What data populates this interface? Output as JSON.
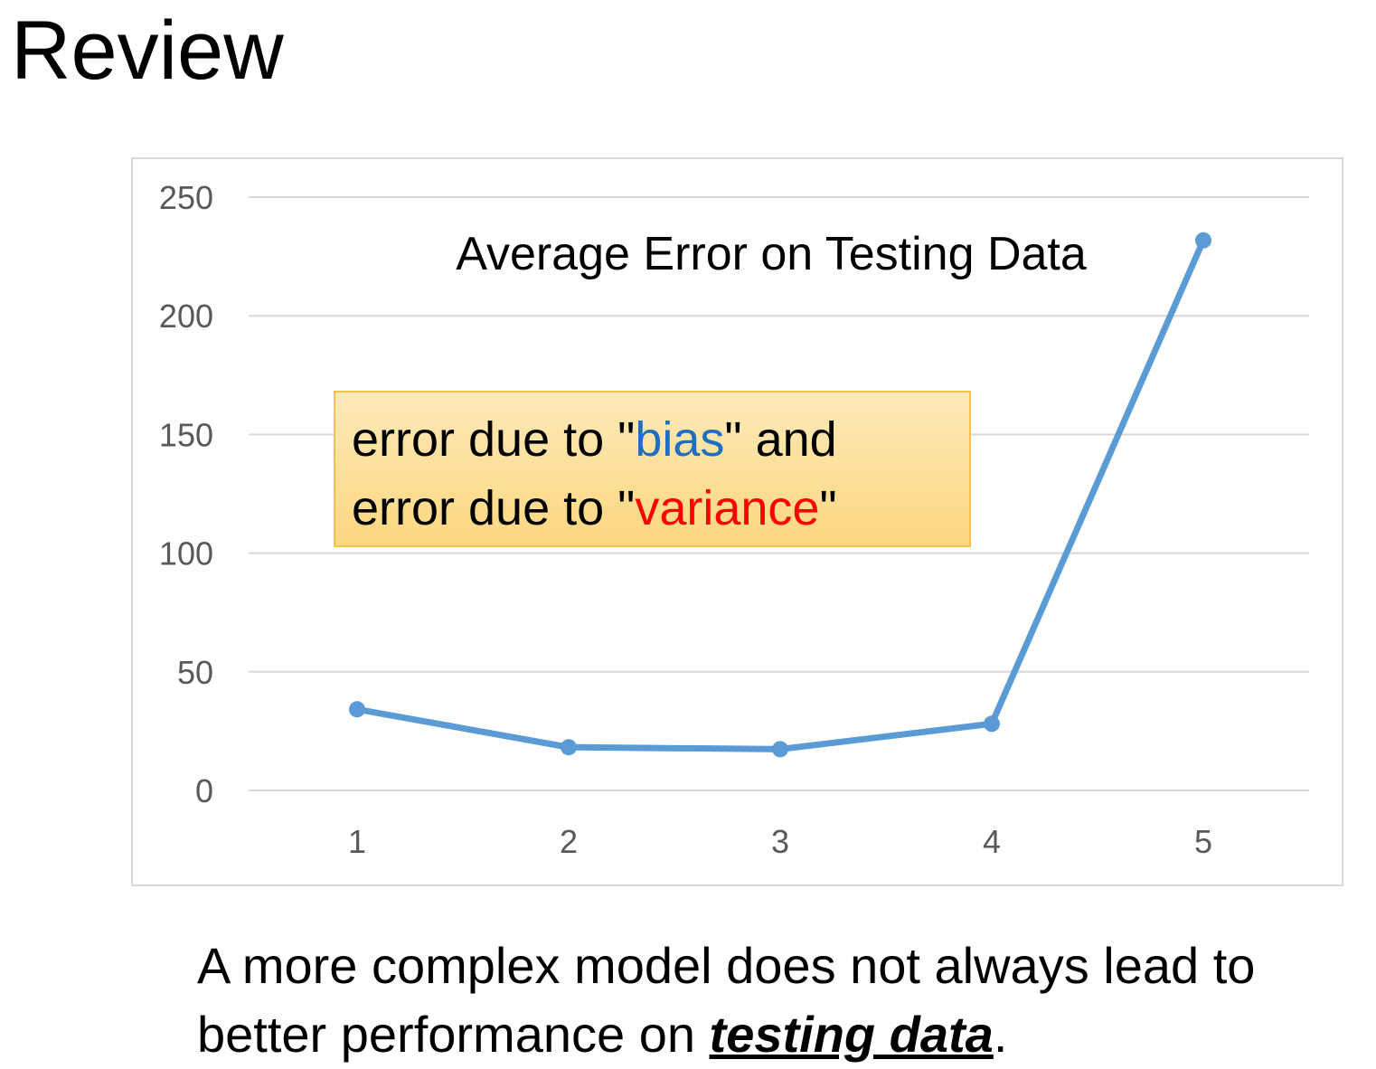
{
  "slide": {
    "title": "Review"
  },
  "callout": {
    "line1_prefix": "error due to \"",
    "line1_highlight": "bias",
    "line1_suffix": "\" and",
    "line2_prefix": "error due to \"",
    "line2_highlight": "variance",
    "line2_suffix": "\"",
    "colors": {
      "bias": "#1f6fc1",
      "variance": "#ff0000"
    }
  },
  "caption": {
    "text_before": "A more complex model does not always lead to better performance on ",
    "emphasis": "testing data",
    "text_after": "."
  },
  "chart_data": {
    "type": "line",
    "title": "Average Error on Testing Data",
    "xlabel": "",
    "ylabel": "",
    "categories": [
      "1",
      "2",
      "3",
      "4",
      "5"
    ],
    "series": [
      {
        "values": [
          34.2,
          18.2,
          17.4,
          28.1,
          231.8
        ],
        "color": "#5b9bd5"
      }
    ],
    "ylim": [
      0,
      250
    ],
    "yticks": [
      0,
      50,
      100,
      150,
      200,
      250
    ],
    "grid": true,
    "legend": "none"
  }
}
